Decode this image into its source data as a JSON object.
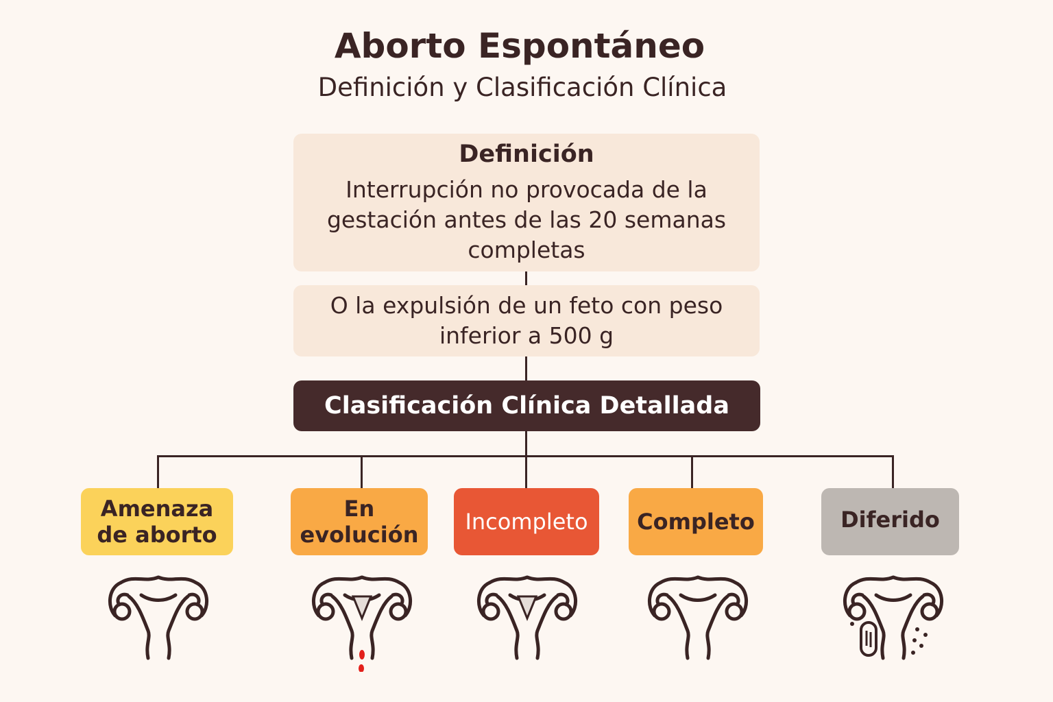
{
  "header": {
    "title": "Aborto Espontáneo",
    "subtitle": "Definición y Clasificación Clínica"
  },
  "definition": {
    "heading": "Definición",
    "lines": [
      "Interrupción no provocada de la",
      "gestación antes de las 20 semanas",
      "completas"
    ]
  },
  "alternative": {
    "lines": [
      "O la expulsión de un feto con peso",
      "inferior a 500 g"
    ]
  },
  "classification": {
    "heading": "Clasificación Clínica Detallada",
    "categories": [
      {
        "lines": [
          "Amenaza",
          "de aborto"
        ],
        "color": "#fbd25a",
        "icon": "uterus-icon"
      },
      {
        "lines": [
          "En",
          "evolución"
        ],
        "color": "#f9a945",
        "icon": "uterus-bleeding-icon"
      },
      {
        "lines": [
          "Incompleto"
        ],
        "color": "#e85735",
        "icon": "uterus-retained-tissue-icon"
      },
      {
        "lines": [
          "Completo"
        ],
        "color": "#f9a945",
        "icon": "uterus-empty-icon"
      },
      {
        "lines": [
          "Diferido"
        ],
        "color": "#bdb7b2",
        "icon": "uterus-retained-fetus-icon"
      }
    ]
  }
}
